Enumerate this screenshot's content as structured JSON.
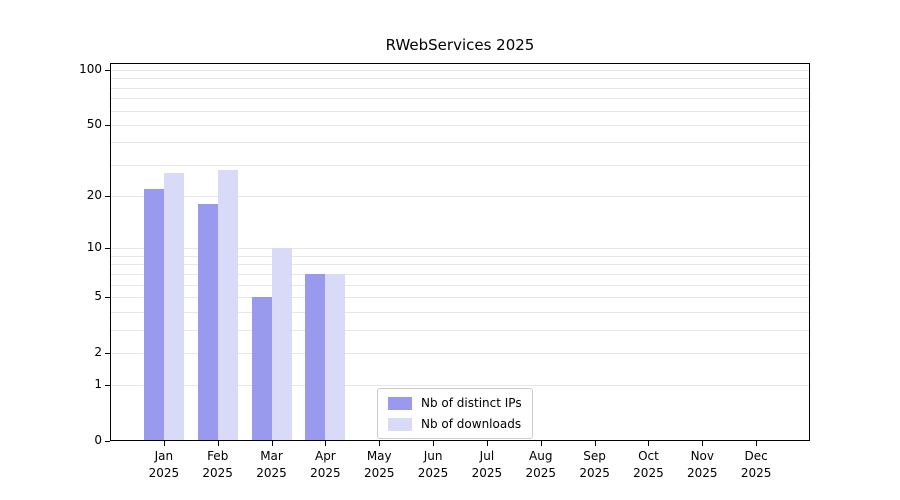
{
  "chart_data": {
    "type": "bar",
    "title": "RWebServices 2025",
    "categories": [
      "Jan",
      "Feb",
      "Mar",
      "Apr",
      "May",
      "Jun",
      "Jul",
      "Aug",
      "Sep",
      "Oct",
      "Nov",
      "Dec"
    ],
    "year_label": "2025",
    "series": [
      {
        "name": "Nb of distinct IPs",
        "color": "#9999ee",
        "values": [
          22,
          18,
          5,
          7,
          0,
          0,
          0,
          0,
          0,
          0,
          0,
          0
        ]
      },
      {
        "name": "Nb of downloads",
        "color": "#d9d9f8",
        "values": [
          27,
          28,
          10,
          7,
          0,
          0,
          0,
          0,
          0,
          0,
          0,
          0
        ]
      }
    ],
    "y_ticks": [
      0,
      1,
      2,
      5,
      10,
      20,
      50,
      100
    ],
    "y_scale": "log1p",
    "ylim": [
      0,
      100
    ],
    "grid": "on",
    "legend_position": "bottom-center",
    "axis_color": "#000000",
    "grid_color": "#e7e7e7"
  }
}
